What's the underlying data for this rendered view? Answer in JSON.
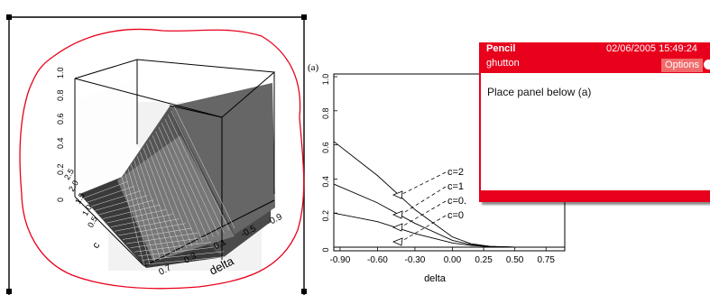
{
  "left_plot": {
    "z_ticks": [
      "0",
      "0.2",
      "0.4",
      "0.6",
      "0.8",
      "1.0"
    ],
    "c_ticks": [
      "0.5",
      "1.0",
      "1.5",
      "2.0",
      "2.5"
    ],
    "c_label": "c",
    "delta_ticks": [
      "0.7",
      "0.3",
      "-0.1",
      "-0.5",
      "-0.9"
    ],
    "delta_label": "delta"
  },
  "panel_label": "(a)",
  "chart_data": {
    "type": "line",
    "xlabel": "delta",
    "ylabel": "",
    "xlim": [
      -0.95,
      0.9
    ],
    "ylim": [
      0,
      1.0
    ],
    "x_ticks": [
      "-0.90",
      "-0.60",
      "-0.30",
      "0.00",
      "0.25",
      "0.50",
      "0.75"
    ],
    "y_ticks": [
      "0",
      "0.2",
      "0.4",
      "0.6",
      "0.8",
      "1.0"
    ],
    "series": [
      {
        "name": "c=2",
        "x": [
          -0.95,
          -0.6,
          -0.3,
          0.0,
          0.15,
          0.3,
          0.5,
          0.9
        ],
        "y": [
          0.62,
          0.42,
          0.22,
          0.06,
          0.02,
          0.005,
          0.0,
          0.0
        ]
      },
      {
        "name": "c=1",
        "x": [
          -0.95,
          -0.6,
          -0.3,
          0.0,
          0.15,
          0.3,
          0.5,
          0.9
        ],
        "y": [
          0.37,
          0.26,
          0.14,
          0.04,
          0.015,
          0.004,
          0.0,
          0.0
        ]
      },
      {
        "name": "c=0.",
        "x": [
          -0.95,
          -0.6,
          -0.3,
          0.0,
          0.15,
          0.3,
          0.5,
          0.9
        ],
        "y": [
          0.2,
          0.15,
          0.08,
          0.025,
          0.01,
          0.003,
          0.0,
          0.0
        ]
      },
      {
        "name": "c=0",
        "x": [
          -0.95,
          0.9
        ],
        "y": [
          0.0,
          0.0
        ]
      }
    ]
  },
  "note": {
    "author": "Pencil",
    "date": "02/06/2005 15:49:24",
    "user": "ghutton",
    "options_label": "Options",
    "body": "Place panel below (a)"
  },
  "colors": {
    "annotation": "#e8001c",
    "options_bg": "#f26b6b"
  }
}
